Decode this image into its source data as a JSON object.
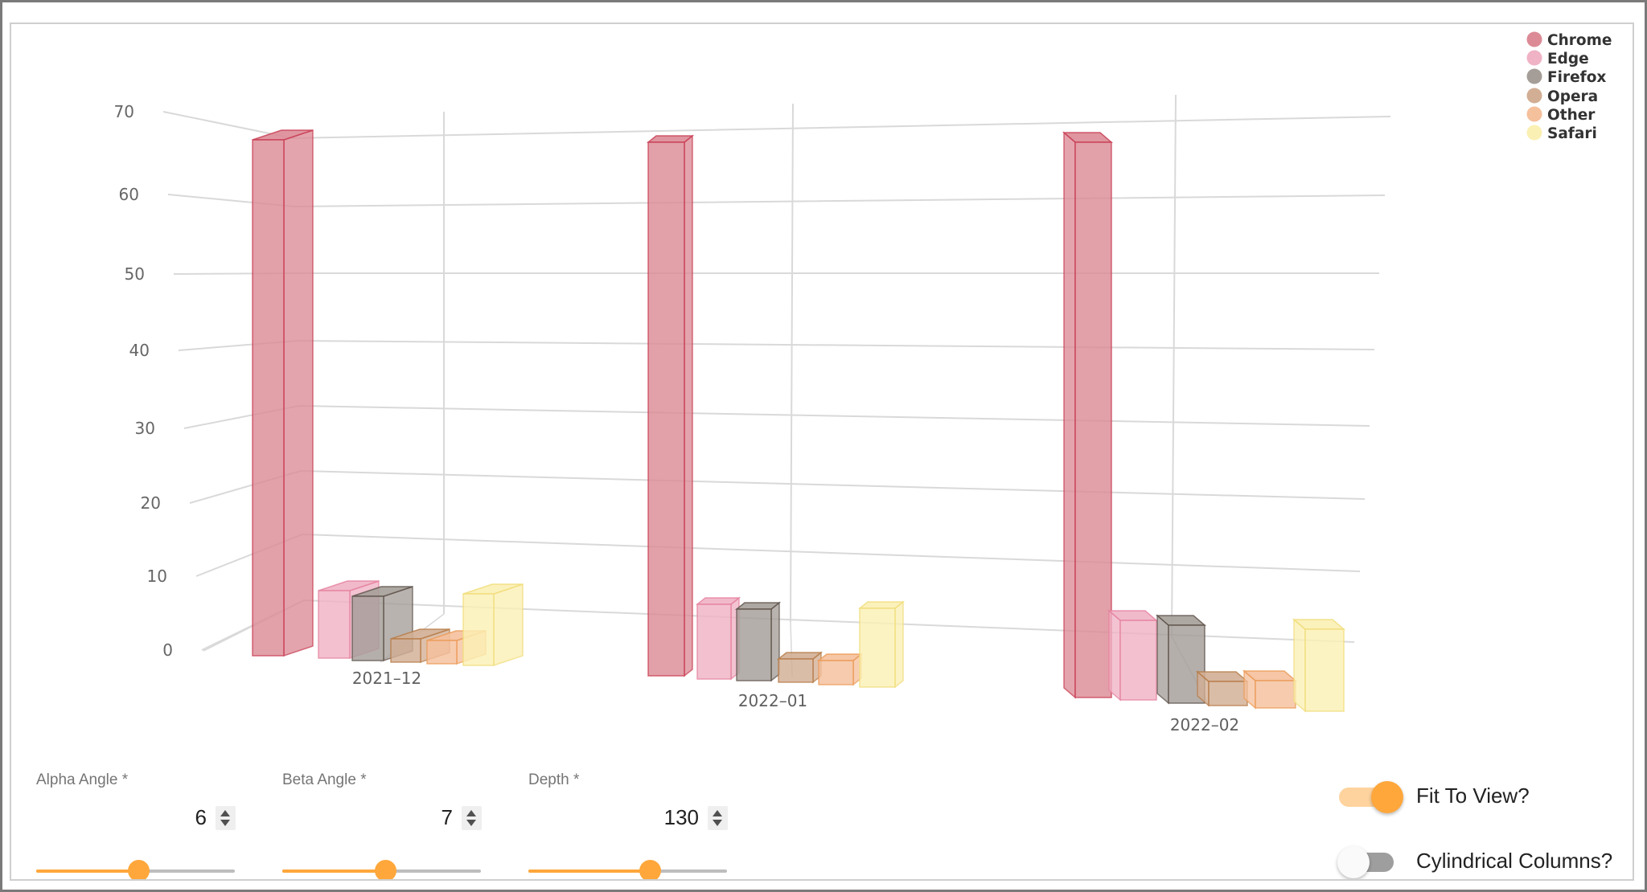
{
  "chart_data": {
    "type": "bar",
    "subtype": "3d-column",
    "title": "",
    "xlabel": "",
    "ylabel": "",
    "categories": [
      "2021-12",
      "2022-01",
      "2022-02"
    ],
    "category_labels": [
      "2021–12",
      "2022–01",
      "2022–02"
    ],
    "series": [
      {
        "name": "Chrome",
        "color": "#dc8b96",
        "stroke": "#c83a50",
        "values": [
          69.2,
          68.4,
          68.9
        ]
      },
      {
        "name": "Edge",
        "color": "#f0b2c5",
        "stroke": "#e5809e",
        "values": [
          4.2,
          4.7,
          5.2
        ]
      },
      {
        "name": "Firefox",
        "color": "#a59e98",
        "stroke": "#5b5048",
        "values": [
          4.7,
          5.2,
          6.0
        ]
      },
      {
        "name": "Opera",
        "color": "#d2ae94",
        "stroke": "#b57a45",
        "values": [
          1.8,
          1.8,
          2.1
        ]
      },
      {
        "name": "Other",
        "color": "#f5c09c",
        "stroke": "#eb9a55",
        "values": [
          1.6,
          1.6,
          2.2
        ]
      },
      {
        "name": "Safari",
        "color": "#fbf0b4",
        "stroke": "#f0dc78",
        "values": [
          6.0,
          6.6,
          6.9
        ]
      }
    ],
    "y_ticks": [
      "0",
      "10",
      "20",
      "30",
      "40",
      "50",
      "60",
      "70"
    ],
    "ylim": [
      0,
      70
    ],
    "grid": true,
    "legend_position": "top-right"
  },
  "legend": {
    "items": [
      "Chrome",
      "Edge",
      "Firefox",
      "Opera",
      "Other",
      "Safari"
    ]
  },
  "controls": {
    "alpha": {
      "label": "Alpha Angle *",
      "value": "6"
    },
    "beta": {
      "label": "Beta Angle *",
      "value": "7"
    },
    "depth": {
      "label": "Depth *",
      "value": "130"
    },
    "fit_to_view": {
      "label": "Fit To View?",
      "checked": true
    },
    "cylindrical": {
      "label": "Cylindrical Columns?",
      "checked": false
    }
  },
  "colors": {
    "accent": "#ffa73b",
    "accent_light": "#ffd39e",
    "toggle_off_track": "#9e9e9e",
    "grid": "#d9d9d9"
  }
}
